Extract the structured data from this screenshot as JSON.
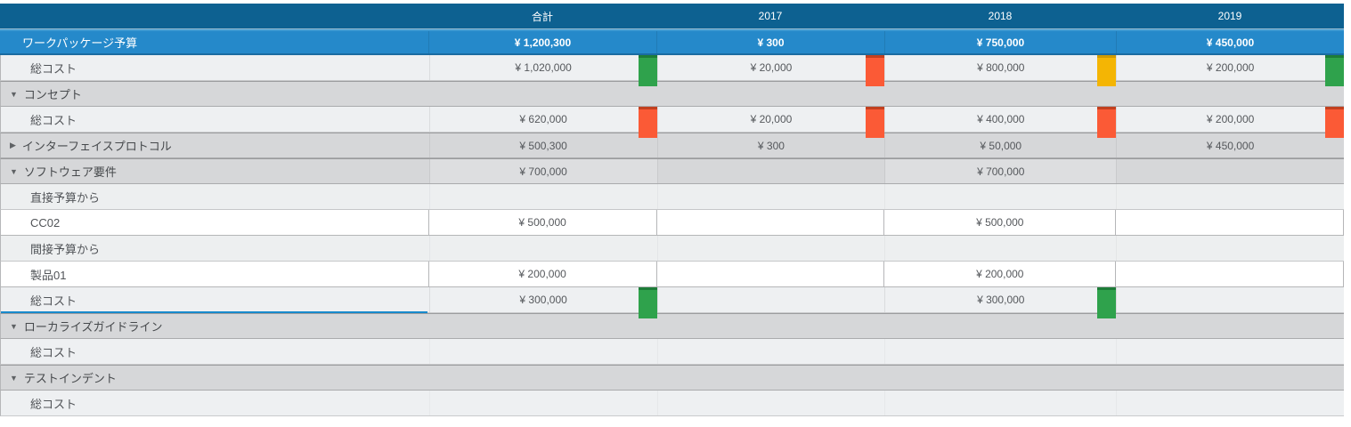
{
  "table": {
    "columns": [
      {
        "id": "name",
        "label": ""
      },
      {
        "id": "total",
        "label": "合計"
      },
      {
        "id": "2017",
        "label": "2017"
      },
      {
        "id": "2018",
        "label": "2018"
      },
      {
        "id": "2019",
        "label": "2019"
      }
    ],
    "icons": {
      "collapse": "▼",
      "expand": "▶"
    },
    "rows": [
      {
        "type": "budget",
        "label": "ワークパッケージ予算",
        "values": [
          "¥ 1,200,300",
          "¥ 300",
          "¥ 750,000",
          "¥ 450,000"
        ]
      },
      {
        "type": "cost",
        "label": "総コスト",
        "values": [
          "¥ 1,020,000",
          "¥ 20,000",
          "¥ 800,000",
          "¥ 200,000"
        ],
        "indicators": [
          "green",
          "red",
          "amber",
          "green"
        ]
      },
      {
        "type": "section",
        "label": "コンセプト",
        "arrow": "down",
        "values": [
          "",
          "",
          "",
          ""
        ]
      },
      {
        "type": "cost",
        "label": "総コスト",
        "values": [
          "¥ 620,000",
          "¥ 20,000",
          "¥ 400,000",
          "¥ 200,000"
        ],
        "indicators": [
          "red",
          "red",
          "red",
          "red"
        ]
      },
      {
        "type": "section-values",
        "label": "インターフェイスプロトコル",
        "arrow": "right",
        "values": [
          "¥ 500,300",
          "¥ 300",
          "¥ 50,000",
          "¥ 450,000"
        ]
      },
      {
        "type": "section-values",
        "label": "ソフトウェア要件",
        "arrow": "down",
        "tint_cells": true,
        "values": [
          "¥ 700,000",
          "",
          "¥ 700,000",
          ""
        ]
      },
      {
        "type": "subhead",
        "label": "直接予算から",
        "values": [
          "",
          "",
          "",
          ""
        ]
      },
      {
        "type": "entry",
        "label": "CC02",
        "values": [
          "¥ 500,000",
          "",
          "¥ 500,000",
          ""
        ]
      },
      {
        "type": "subhead",
        "label": "間接予算から",
        "values": [
          "",
          "",
          "",
          ""
        ]
      },
      {
        "type": "entry",
        "label": "製品01",
        "values": [
          "¥ 200,000",
          "",
          "¥ 200,000",
          ""
        ]
      },
      {
        "type": "cost",
        "label": "総コスト",
        "selected": true,
        "values": [
          "¥ 300,000",
          "",
          "¥ 300,000",
          ""
        ],
        "indicators": [
          "green",
          "",
          "green",
          ""
        ]
      },
      {
        "type": "section",
        "label": "ローカライズガイドライン",
        "arrow": "down",
        "values": [
          "",
          "",
          "",
          ""
        ]
      },
      {
        "type": "cost-empty",
        "label": "総コスト",
        "values": [
          "",
          "",
          "",
          ""
        ]
      },
      {
        "type": "section",
        "label": "テストインデント",
        "arrow": "down",
        "values": [
          "",
          "",
          "",
          ""
        ]
      },
      {
        "type": "cost-empty",
        "label": "総コスト",
        "values": [
          "",
          "",
          "",
          ""
        ]
      }
    ],
    "colors": {
      "header_bg": "#0d6191",
      "budget_bg": "#2589ca",
      "budget_top": "#3f9ad2",
      "budget_border": "#1a6ba1",
      "selection": "#1789cb",
      "indicator": {
        "green": {
          "body": "#2fa24c",
          "cap": "#1d7c38"
        },
        "red": {
          "body": "#fb5a36",
          "cap": "#c2401f"
        },
        "amber": {
          "body": "#f4b504",
          "cap": "#cf9a00"
        }
      }
    }
  }
}
